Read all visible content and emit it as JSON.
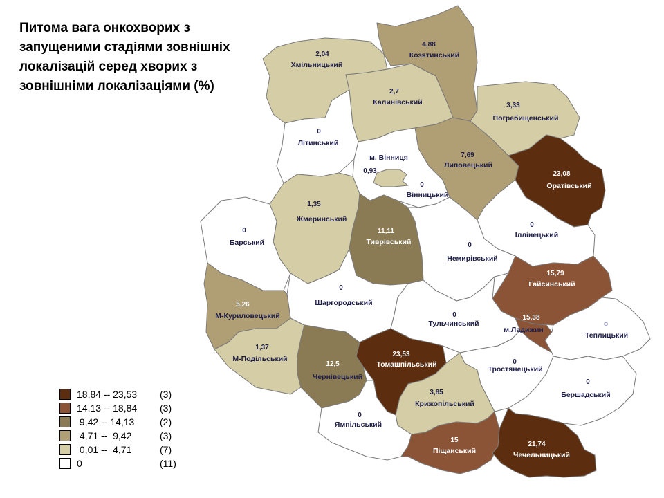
{
  "title": "Питома вага онкохворих з запущеними стадіями зовнішніх локалізацій серед хворих з зовнішніми локалізаціями (%)",
  "colors": {
    "class5": "#5c2e0f",
    "class4": "#8c5437",
    "class3": "#8b7b54",
    "class2": "#b09e74",
    "class1": "#d4cda5",
    "class0": "#ffffff",
    "border": "#7a7a7a"
  },
  "legend": [
    {
      "range": "18,84 -- 23,53",
      "count": "(3)",
      "color": "#5c2e0f"
    },
    {
      "range": "14,13 -- 18,84",
      "count": "(3)",
      "color": "#8c5437"
    },
    {
      "range": " 9,42 -- 14,13",
      "count": "(2)",
      "color": "#8b7b54"
    },
    {
      "range": " 4,71 --  9,42",
      "count": "(3)",
      "color": "#b09e74"
    },
    {
      "range": " 0,01 --  4,71",
      "count": "(7)",
      "color": "#d4cda5"
    },
    {
      "range": "0",
      "count": "(11)",
      "color": "#ffffff"
    }
  ],
  "regions": [
    {
      "id": "khmilnytskyi",
      "name": "Хмільницький",
      "value": "2,04",
      "fill": "#d4cda5"
    },
    {
      "id": "koziatynskyi",
      "name": "Козятинський",
      "value": "4,88",
      "fill": "#b09e74"
    },
    {
      "id": "kalynivskyi",
      "name": "Калинівський",
      "value": "2,7",
      "fill": "#d4cda5"
    },
    {
      "id": "pohrebyshchenskyi",
      "name": "Погребищенський",
      "value": "3,33",
      "fill": "#d4cda5"
    },
    {
      "id": "litynskyi",
      "name": "Літинський",
      "value": "0",
      "fill": "#ffffff"
    },
    {
      "id": "lypovetskyi",
      "name": "Липовецький",
      "value": "7,69",
      "fill": "#b09e74"
    },
    {
      "id": "vinnytsia_city",
      "name": "м. Вінниця",
      "value": "0,93",
      "fill": "#d4cda5"
    },
    {
      "id": "vinnytskyi",
      "name": "Вінницький",
      "value": "0",
      "fill": "#ffffff"
    },
    {
      "id": "orativskyi",
      "name": "Оратівський",
      "value": "23,08",
      "fill": "#5c2e0f"
    },
    {
      "id": "zhmerynskyi",
      "name": "Жмеринський",
      "value": "1,35",
      "fill": "#d4cda5"
    },
    {
      "id": "barskyi",
      "name": "Барський",
      "value": "0",
      "fill": "#ffffff"
    },
    {
      "id": "tyvrivskyi",
      "name": "Тиврівський",
      "value": "11,11",
      "fill": "#8b7b54"
    },
    {
      "id": "illinetskyi",
      "name": "Іллінецький",
      "value": "0",
      "fill": "#ffffff"
    },
    {
      "id": "nemyrivskyi",
      "name": "Немирівський",
      "value": "0",
      "fill": "#ffffff"
    },
    {
      "id": "haisynskyi",
      "name": "Гайсинський",
      "value": "15,79",
      "fill": "#8c5437"
    },
    {
      "id": "shargorodskyi",
      "name": "Шаргородський",
      "value": "0",
      "fill": "#ffffff"
    },
    {
      "id": "mkurylovetskyi",
      "name": "М-Куриловецький",
      "value": "5,26",
      "fill": "#b09e74"
    },
    {
      "id": "ladyzhyn",
      "name": "м.Ладижин",
      "value": "15,38",
      "fill": "#8c5437"
    },
    {
      "id": "tulchynskyi",
      "name": "Тульчинський",
      "value": "0",
      "fill": "#ffffff"
    },
    {
      "id": "teplytskyi",
      "name": "Теплицький",
      "value": "0",
      "fill": "#ffffff"
    },
    {
      "id": "mpodilskyi",
      "name": "М-Подільський",
      "value": "1,37",
      "fill": "#d4cda5"
    },
    {
      "id": "tomashpilskyi",
      "name": "Томашпільський",
      "value": "23,53",
      "fill": "#5c2e0f"
    },
    {
      "id": "chernivetskyi",
      "name": "Чернівецький",
      "value": "12,5",
      "fill": "#8b7b54"
    },
    {
      "id": "trostianetskyi",
      "name": "Тростянецький",
      "value": "0",
      "fill": "#ffffff"
    },
    {
      "id": "kryzhopilskyi",
      "name": "Крижопільський",
      "value": "3,85",
      "fill": "#d4cda5"
    },
    {
      "id": "bershadskyi",
      "name": "Бершадський",
      "value": "0",
      "fill": "#ffffff"
    },
    {
      "id": "yampilskyi",
      "name": "Ямпільський",
      "value": "0",
      "fill": "#ffffff"
    },
    {
      "id": "pishchanskyi",
      "name": "Піщанський",
      "value": "15",
      "fill": "#8c5437"
    },
    {
      "id": "chechelnytskyi",
      "name": "Чечельницький",
      "value": "21,74",
      "fill": "#5c2e0f"
    }
  ]
}
